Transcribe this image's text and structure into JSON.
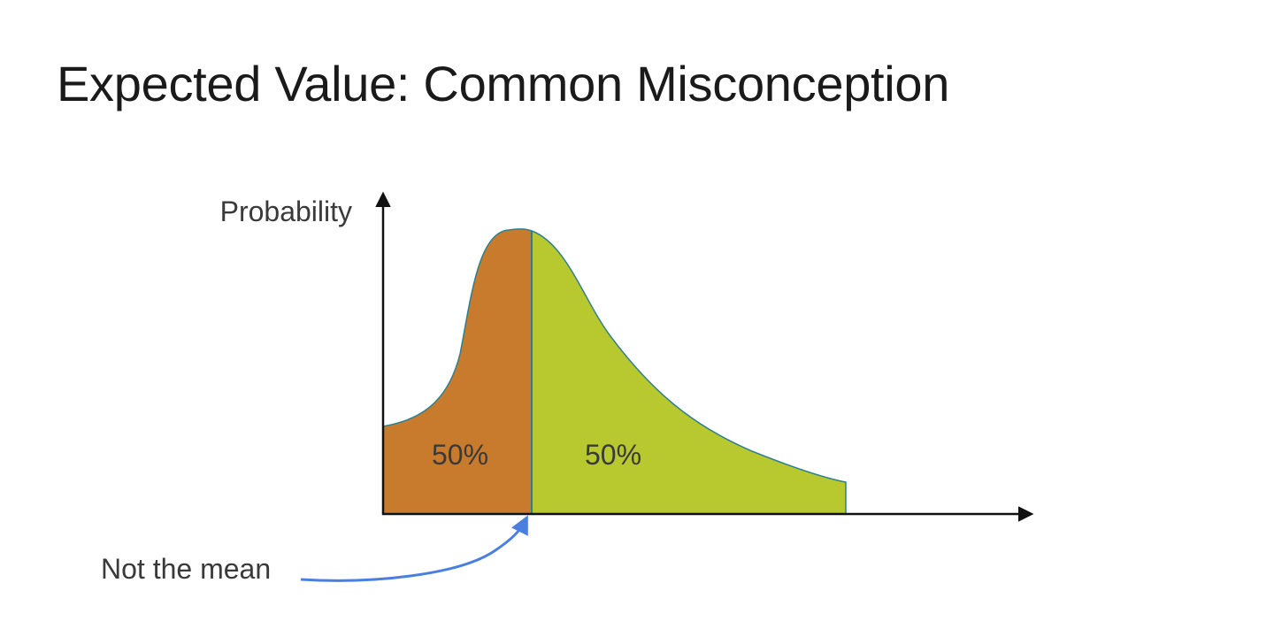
{
  "slide": {
    "title": "Expected Value: Common Misconception"
  },
  "diagram": {
    "y_axis_label": "Probability",
    "left_region_label": "50%",
    "right_region_label": "50%",
    "annotation": "Not the mean",
    "colors": {
      "left_fill": "#c87b2d",
      "right_fill": "#b8c82f",
      "curve_outline": "#2f7f8f",
      "axis": "#111111",
      "annotation_arrow": "#4a7fe0",
      "text": "#3a3a3a"
    }
  }
}
